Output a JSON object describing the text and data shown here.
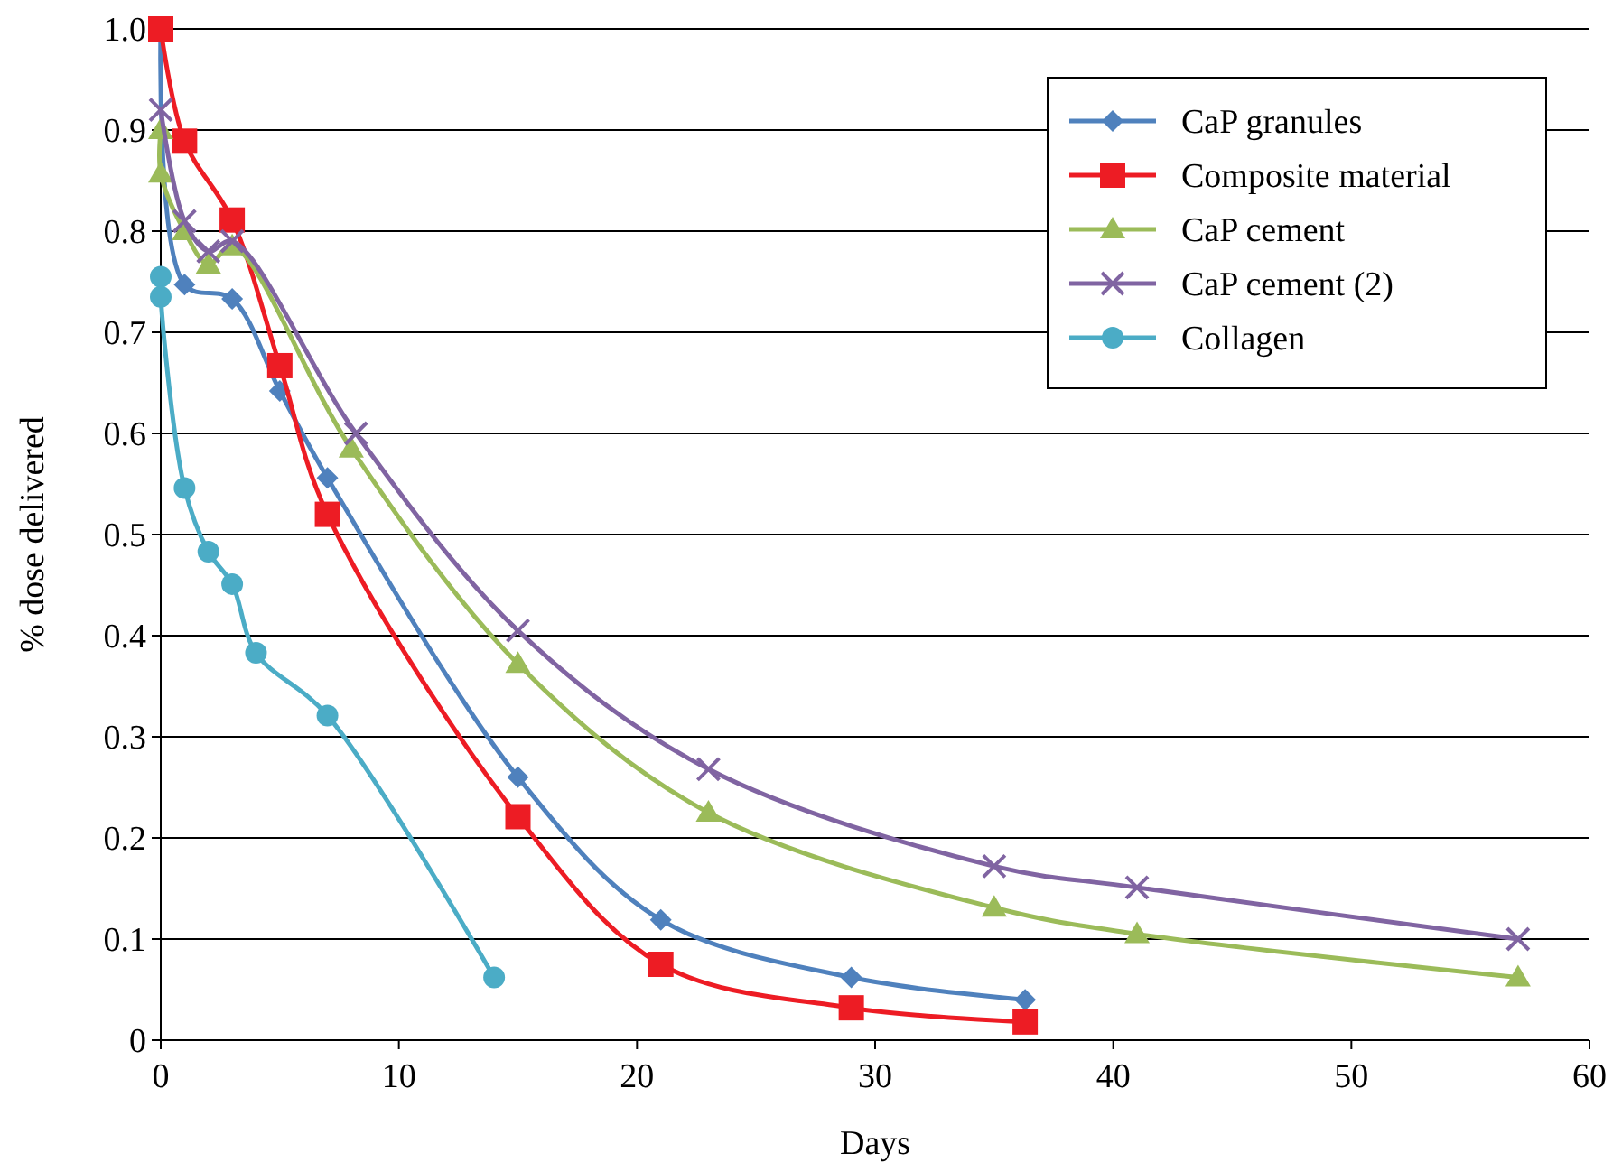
{
  "chart_data": {
    "type": "line",
    "xlabel": "Days",
    "ylabel": "% dose delivered",
    "xlim": [
      0,
      60
    ],
    "xticks": [
      0,
      10,
      20,
      30,
      40,
      50,
      60
    ],
    "ylim": [
      0,
      1
    ],
    "yticks": [
      {
        "value": 0,
        "label": "0"
      },
      {
        "value": 0.1,
        "label": "0.1"
      },
      {
        "value": 0.2,
        "label": "0.2"
      },
      {
        "value": 0.3,
        "label": "0.3"
      },
      {
        "value": 0.4,
        "label": "0.4"
      },
      {
        "value": 0.5,
        "label": "0.5"
      },
      {
        "value": 0.6,
        "label": "0.6"
      },
      {
        "value": 0.7,
        "label": "0.7"
      },
      {
        "value": 0.8,
        "label": "0.8"
      },
      {
        "value": 0.9,
        "label": "0.9"
      },
      {
        "value": 1,
        "label": "1.0"
      }
    ],
    "grid": "y",
    "legend": "top right",
    "line_style": "solid",
    "series": [
      {
        "name": "CaP granules",
        "color": "#4f81bd",
        "marker": "diamond",
        "x": [
          0,
          1,
          3,
          5,
          7,
          15,
          21,
          29,
          36.3
        ],
        "values": [
          1.0,
          0.747,
          0.733,
          0.642,
          0.556,
          0.26,
          0.119,
          0.062,
          0.04
        ]
      },
      {
        "name": "Composite material",
        "color": "#ed1c24",
        "marker": "square",
        "x": [
          0,
          1,
          3,
          5,
          7,
          15,
          21,
          29,
          36.3
        ],
        "values": [
          1.0,
          0.889,
          0.811,
          0.667,
          0.52,
          0.221,
          0.075,
          0.032,
          0.018
        ]
      },
      {
        "name": "CaP cement",
        "color": "#9bbb59",
        "marker": "triangle",
        "x": [
          0,
          0,
          1,
          2,
          3,
          8,
          15,
          23,
          35,
          41,
          57
        ],
        "values": [
          0.9,
          0.857,
          0.8,
          0.767,
          0.785,
          0.585,
          0.372,
          0.225,
          0.131,
          0.105,
          0.062
        ]
      },
      {
        "name": "CaP cement (2)",
        "color": "#8064a2",
        "marker": "cross",
        "x": [
          0,
          1,
          2,
          3,
          8.2,
          15,
          23,
          35,
          41,
          57
        ],
        "values": [
          0.92,
          0.81,
          0.78,
          0.79,
          0.6,
          0.405,
          0.268,
          0.172,
          0.151,
          0.1
        ]
      },
      {
        "name": "Collagen",
        "color": "#4bacc6",
        "marker": "circle",
        "x": [
          0,
          0,
          1,
          2,
          3,
          4,
          7,
          14
        ],
        "values": [
          0.755,
          0.735,
          0.546,
          0.483,
          0.451,
          0.383,
          0.321,
          0.062
        ]
      }
    ]
  }
}
